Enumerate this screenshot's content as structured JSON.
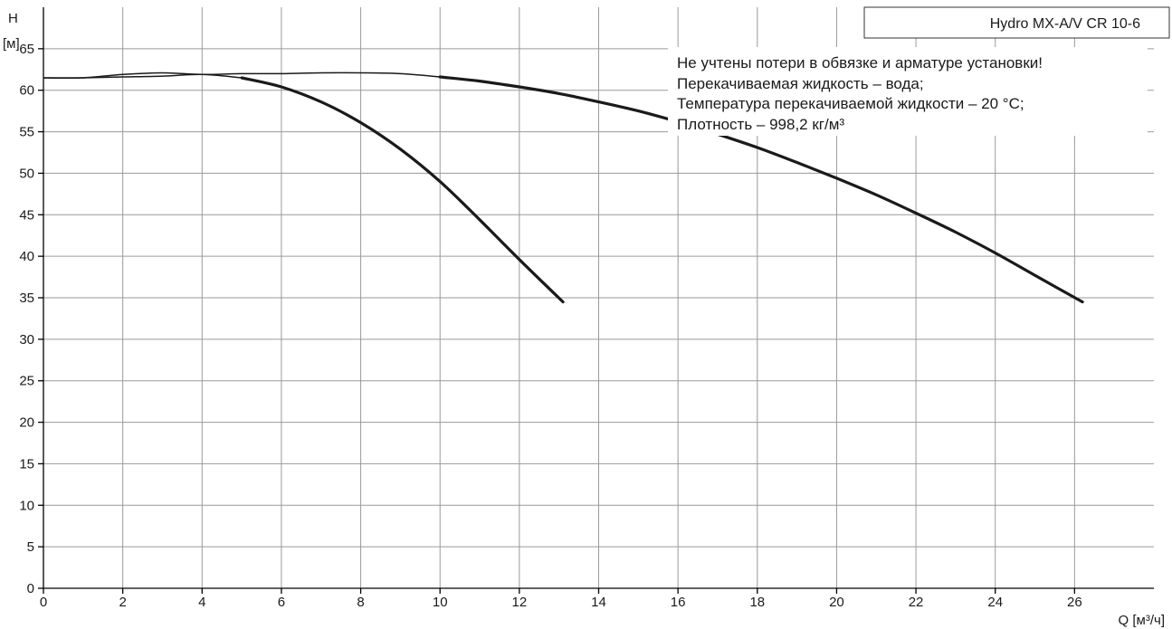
{
  "chart_data": {
    "type": "line",
    "title": "",
    "legend_box": "Hydro MX-A/V CR 10-6",
    "xlabel": "Q [м³/ч]",
    "ylabel_line1": "H",
    "ylabel_line2": "[м]",
    "xlim": [
      0,
      28
    ],
    "ylim": [
      0,
      70
    ],
    "x_ticks": [
      0,
      2,
      4,
      6,
      8,
      10,
      12,
      14,
      16,
      18,
      20,
      22,
      24,
      26
    ],
    "y_ticks": [
      0,
      5,
      10,
      15,
      20,
      25,
      30,
      35,
      40,
      45,
      50,
      55,
      60,
      65
    ],
    "grid": true,
    "legend_position": "top-right",
    "notes": [
      "Не учтены потери в обвязке и арматуре установки!",
      "Перекачиваемая жидкость – вода;",
      "Температура перекачиваемой жидкости – 20 °C;",
      "Плотность – 998,2 кг/м³"
    ],
    "series": [
      {
        "x": [
          0,
          1,
          2,
          3,
          4,
          5,
          6,
          7,
          8,
          9,
          10,
          11,
          12,
          13.1
        ],
        "y": [
          61.5,
          61.5,
          61.6,
          61.7,
          61.9,
          61.5,
          60.4,
          58.6,
          56.1,
          52.9,
          49.0,
          44.4,
          39.6,
          34.5
        ]
      },
      {
        "x": [
          0,
          1,
          2,
          3,
          4,
          5,
          6,
          7,
          8,
          9,
          10,
          11,
          12,
          13,
          14,
          15,
          16,
          17,
          18,
          19,
          20,
          21,
          22,
          23,
          24,
          25,
          26.2
        ],
        "y": [
          61.5,
          61.5,
          61.9,
          62.1,
          61.9,
          62.0,
          62.0,
          62.1,
          62.1,
          62.0,
          61.6,
          61.1,
          60.4,
          59.6,
          58.6,
          57.5,
          56.2,
          54.7,
          53.1,
          51.3,
          49.4,
          47.4,
          45.2,
          42.9,
          40.4,
          37.7,
          34.5
        ]
      }
    ]
  }
}
